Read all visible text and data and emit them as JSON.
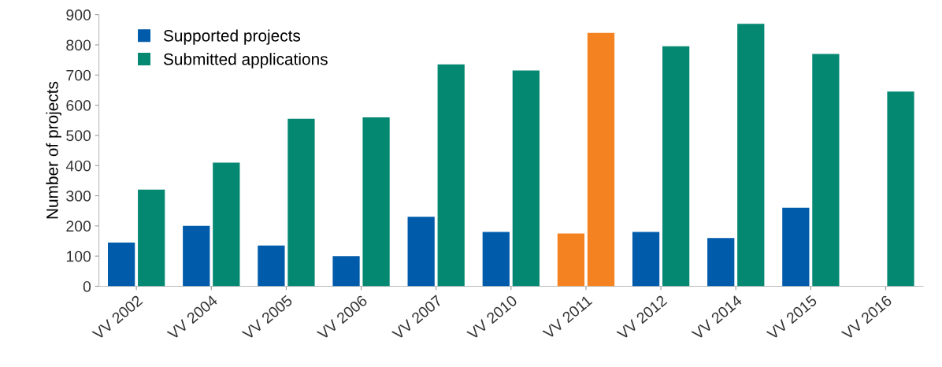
{
  "chart_data": {
    "type": "bar",
    "ylabel": "Number of projects",
    "categories": [
      "VV 2002",
      "VV 2004",
      "VV 2005",
      "VV 2006",
      "VV 2007",
      "VV 2010",
      "VV 2011",
      "VV 2012",
      "VV 2014",
      "VV 2015",
      "VV 2016"
    ],
    "series": [
      {
        "name": "Supported projects",
        "color": "#005bab",
        "colors": [
          "#005bab",
          "#005bab",
          "#005bab",
          "#005bab",
          "#005bab",
          "#005bab",
          "#f58220",
          "#005bab",
          "#005bab",
          "#005bab",
          "#005bab"
        ],
        "values": [
          145,
          200,
          135,
          100,
          230,
          180,
          175,
          180,
          160,
          260,
          null
        ]
      },
      {
        "name": "Submitted applications",
        "color": "#058872",
        "colors": [
          "#058872",
          "#058872",
          "#058872",
          "#058872",
          "#058872",
          "#058872",
          "#f58220",
          "#058872",
          "#058872",
          "#058872",
          "#058872"
        ],
        "values": [
          320,
          410,
          555,
          560,
          735,
          715,
          840,
          795,
          870,
          770,
          645
        ]
      }
    ],
    "ylim": [
      0,
      900
    ],
    "yticks": [
      0,
      100,
      200,
      300,
      400,
      500,
      600,
      700,
      800,
      900
    ],
    "grid": false,
    "legend": "top left"
  }
}
